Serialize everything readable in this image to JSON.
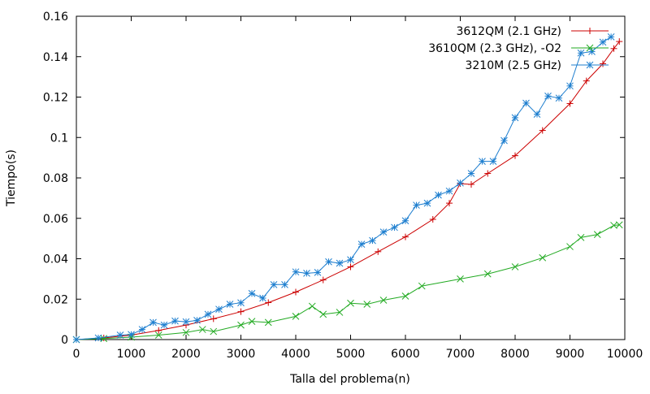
{
  "chart_data": {
    "type": "line",
    "xlabel": "Talla del problema(n)",
    "ylabel": "Tiempo(s)",
    "xlim": [
      0,
      10000
    ],
    "ylim": [
      0,
      0.16
    ],
    "x_ticks": [
      "0",
      "1000",
      "2000",
      "3000",
      "4000",
      "5000",
      "6000",
      "7000",
      "8000",
      "9000",
      "10000"
    ],
    "y_ticks": [
      "0",
      "0.02",
      "0.04",
      "0.06",
      "0.08",
      "0.1",
      "0.12",
      "0.14",
      "0.16"
    ],
    "grid": false,
    "legend_position": "top-right",
    "series": [
      {
        "name": "3612QM (2.1 GHz)",
        "color": "#cc0000",
        "marker": "plus",
        "x": [
          0,
          500,
          1000,
          1500,
          2000,
          2500,
          3000,
          3500,
          4000,
          4500,
          5000,
          5500,
          6000,
          6500,
          6800,
          7000,
          7200,
          7500,
          8000,
          8500,
          9000,
          9300,
          9600,
          9800,
          9900
        ],
        "y": [
          0.0,
          0.0008,
          0.0022,
          0.0045,
          0.0072,
          0.0103,
          0.0138,
          0.0183,
          0.0235,
          0.0295,
          0.036,
          0.0435,
          0.0508,
          0.0595,
          0.0675,
          0.0772,
          0.0768,
          0.0822,
          0.091,
          0.1035,
          0.1168,
          0.128,
          0.1365,
          0.144,
          0.1475
        ]
      },
      {
        "name": "3610QM (2.3 GHz), -O2",
        "color": "#22aa22",
        "marker": "cross",
        "x": [
          0,
          500,
          1000,
          1500,
          2000,
          2300,
          2500,
          3000,
          3200,
          3500,
          4000,
          4300,
          4500,
          4800,
          5000,
          5300,
          5600,
          6000,
          6300,
          7000,
          7500,
          8000,
          8500,
          9000,
          9200,
          9500,
          9800,
          9900
        ],
        "y": [
          0.0,
          0.0005,
          0.0012,
          0.0022,
          0.0035,
          0.005,
          0.004,
          0.0072,
          0.009,
          0.0085,
          0.0115,
          0.0165,
          0.0125,
          0.0135,
          0.018,
          0.0175,
          0.0195,
          0.0215,
          0.0265,
          0.03,
          0.0325,
          0.036,
          0.0405,
          0.046,
          0.0505,
          0.052,
          0.0565,
          0.0568
        ]
      },
      {
        "name": "3210M (2.5 GHz)",
        "color": "#1f7fcf",
        "marker": "star",
        "x": [
          0,
          400,
          800,
          1000,
          1200,
          1400,
          1600,
          1800,
          2000,
          2200,
          2400,
          2600,
          2800,
          3000,
          3200,
          3400,
          3600,
          3800,
          4000,
          4200,
          4400,
          4600,
          4800,
          5000,
          5200,
          5400,
          5600,
          5800,
          6000,
          6200,
          6400,
          6600,
          6800,
          7000,
          7200,
          7400,
          7600,
          7800,
          8000,
          8200,
          8400,
          8600,
          8800,
          9000,
          9200,
          9400,
          9600,
          9750
        ],
        "y": [
          0.0,
          0.0008,
          0.0022,
          0.0025,
          0.005,
          0.0085,
          0.0072,
          0.0092,
          0.0088,
          0.0095,
          0.0125,
          0.015,
          0.0175,
          0.0182,
          0.0228,
          0.0205,
          0.0272,
          0.0272,
          0.0335,
          0.0328,
          0.0332,
          0.0385,
          0.0378,
          0.0395,
          0.0472,
          0.049,
          0.0532,
          0.0555,
          0.0588,
          0.0665,
          0.0675,
          0.0715,
          0.0735,
          0.0775,
          0.0822,
          0.0882,
          0.0882,
          0.0985,
          0.1098,
          0.117,
          0.1115,
          0.1205,
          0.1195,
          0.1255,
          0.1418,
          0.1425,
          0.1472,
          0.1498
        ]
      }
    ]
  }
}
